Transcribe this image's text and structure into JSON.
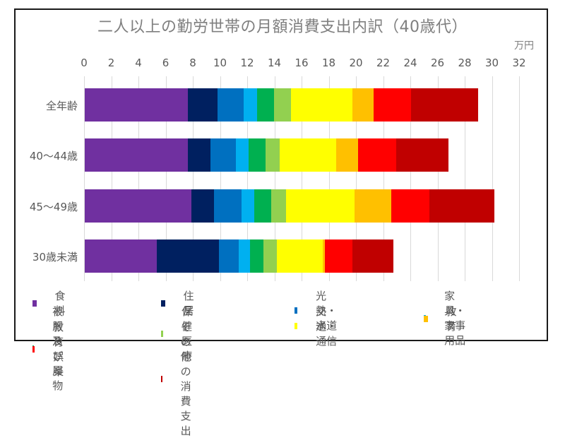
{
  "chart": {
    "title": "二人以上の勤労世帯の月額消費支出内訳（40歳代）",
    "unit_label": "万円"
  },
  "chart_data": {
    "type": "bar",
    "orientation": "horizontal",
    "stacked": true,
    "title": "二人以上の勤労世帯の月額消費支出内訳（40歳代）",
    "xlabel": "万円",
    "ylabel": "",
    "xlim": [
      0,
      32
    ],
    "x_ticks": [
      0,
      2,
      4,
      6,
      8,
      10,
      12,
      14,
      16,
      18,
      20,
      22,
      24,
      26,
      28,
      30,
      32
    ],
    "grid": true,
    "legend_position": "bottom",
    "categories": [
      "全年齢",
      "40〜44歳",
      "45〜49歳",
      "30歳未満"
    ],
    "series": [
      {
        "name": "食料",
        "color": "#7030a0",
        "values": [
          7.57,
          7.57,
          7.83,
          5.32
        ]
      },
      {
        "name": "住居",
        "color": "#002060",
        "values": [
          2.19,
          1.66,
          1.67,
          4.56
        ]
      },
      {
        "name": "光熱・水道",
        "color": "#0070c0",
        "values": [
          1.95,
          1.88,
          2.05,
          1.45
        ]
      },
      {
        "name": "家具・家事用品",
        "color": "#00b0f0",
        "values": [
          0.96,
          0.95,
          0.94,
          0.82
        ]
      },
      {
        "name": "被服及び履物",
        "color": "#00b050",
        "values": [
          1.23,
          1.24,
          1.22,
          1.02
        ]
      },
      {
        "name": "保健医療",
        "color": "#92d050",
        "values": [
          1.26,
          1.05,
          1.1,
          0.96
        ]
      },
      {
        "name": "交通・通信",
        "color": "#ffff00",
        "values": [
          4.55,
          4.15,
          5.06,
          3.37
        ]
      },
      {
        "name": "教育",
        "color": "#ffc000",
        "values": [
          1.53,
          1.6,
          2.7,
          0.15
        ]
      },
      {
        "name": "教育娯楽",
        "color": "#ff0000",
        "values": [
          2.76,
          2.82,
          2.77,
          2.05
        ]
      },
      {
        "name": "その他の消費支出",
        "color": "#c00000",
        "values": [
          4.94,
          3.83,
          4.8,
          3.02
        ]
      }
    ]
  },
  "legend": {
    "items": [
      {
        "label": "食料",
        "color": "#7030a0"
      },
      {
        "label": "住居",
        "color": "#002060"
      },
      {
        "label": "光熱・水道",
        "color": "#0070c0"
      },
      {
        "label": "家具・家事用品",
        "color": "#00b0f0"
      },
      {
        "label": "被服及び履物",
        "color": "#00b050"
      },
      {
        "label": "保健医療",
        "color": "#92d050"
      },
      {
        "label": "交通・通信",
        "color": "#ffff00"
      },
      {
        "label": "教育",
        "color": "#ffc000"
      },
      {
        "label": "教育娯楽",
        "color": "#ff0000"
      },
      {
        "label": "その他の消費支出",
        "color": "#c00000"
      }
    ]
  }
}
